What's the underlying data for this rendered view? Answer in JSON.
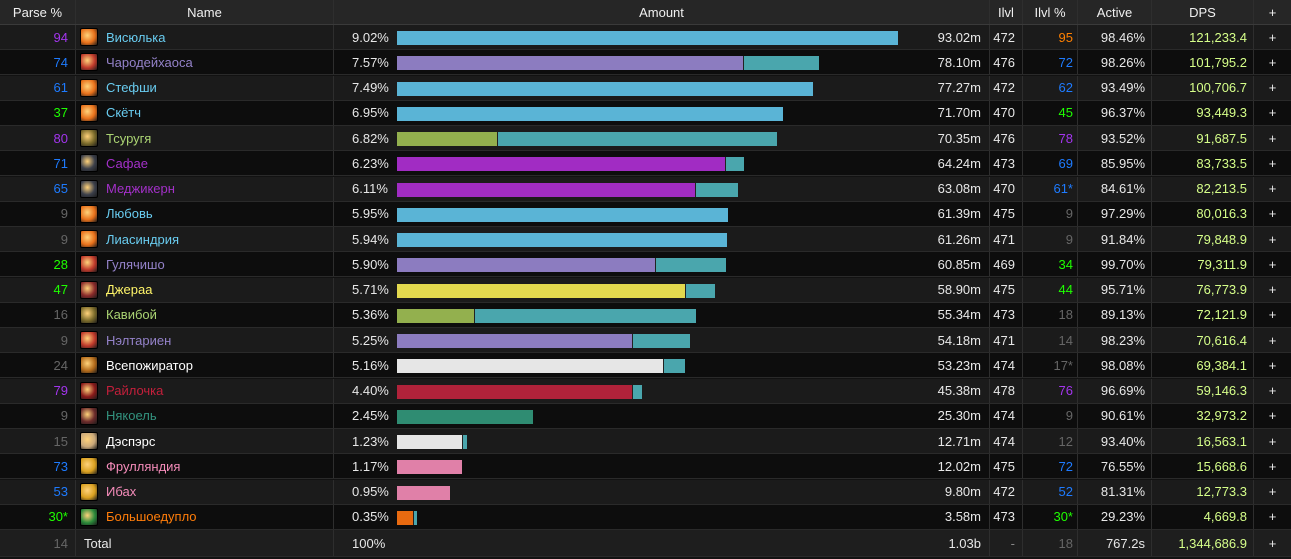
{
  "colors": {
    "legendary": "#ff8000",
    "epic": "#a335ee",
    "rare": "#1e7bff",
    "uncommon": "#1eff00",
    "common": "#666666",
    "dps": "#d6ff8a"
  },
  "columns": [
    "Parse %",
    "Name",
    "Amount",
    "Ilvl",
    "Ilvl %",
    "Active",
    "DPS",
    "+"
  ],
  "rows": [
    {
      "parse": "94",
      "parse_color": "#a335ee",
      "name": "Висюлька",
      "name_color": "#69ccf0",
      "icon": "fire-icon",
      "icon_color": "#e8701a",
      "pct": "9.02%",
      "amount": "93.02m",
      "share": 1.0,
      "primary_share": 1.0,
      "primary_color": "#5ab4d6",
      "ilvl": "472",
      "ilvlp": "95",
      "ilvlp_color": "#ff8000",
      "active": "98.46%",
      "dps": "121,233.4",
      "plus": "+"
    },
    {
      "parse": "74",
      "parse_color": "#1e7bff",
      "name": "Чародейхаоса",
      "name_color": "#9482c9",
      "icon": "chaos-bolt-icon",
      "icon_color": "#c0392b",
      "pct": "7.57%",
      "amount": "78.10m",
      "share": 0.84,
      "primary_share": 0.69,
      "primary_color": "#8c7cc0",
      "ilvl": "476",
      "ilvlp": "72",
      "ilvlp_color": "#1e7bff",
      "active": "98.26%",
      "dps": "101,795.2",
      "plus": "+"
    },
    {
      "parse": "61",
      "parse_color": "#1e7bff",
      "name": "Стефши",
      "name_color": "#69ccf0",
      "icon": "fire-icon",
      "icon_color": "#e8701a",
      "pct": "7.49%",
      "amount": "77.27m",
      "share": 0.83,
      "primary_share": 0.83,
      "primary_color": "#5ab4d6",
      "ilvl": "472",
      "ilvlp": "62",
      "ilvlp_color": "#1e7bff",
      "active": "93.49%",
      "dps": "100,706.7",
      "plus": "+"
    },
    {
      "parse": "37",
      "parse_color": "#1eff00",
      "name": "Скётч",
      "name_color": "#69ccf0",
      "icon": "fire-icon",
      "icon_color": "#e8701a",
      "pct": "6.95%",
      "amount": "71.70m",
      "share": 0.77,
      "primary_share": 0.77,
      "primary_color": "#5ab4d6",
      "ilvl": "470",
      "ilvlp": "45",
      "ilvlp_color": "#1eff00",
      "active": "96.37%",
      "dps": "93,449.3",
      "plus": "+"
    },
    {
      "parse": "80",
      "parse_color": "#a335ee",
      "name": "Тсуругя",
      "name_color": "#abd473",
      "icon": "bow-icon",
      "icon_color": "#7a6a2a",
      "pct": "6.82%",
      "amount": "70.35m",
      "share": 0.756,
      "primary_share": 0.2,
      "primary_color": "#93b04e",
      "ilvl": "476",
      "ilvlp": "78",
      "ilvlp_color": "#a335ee",
      "active": "93.52%",
      "dps": "91,687.5",
      "plus": "+"
    },
    {
      "parse": "71",
      "parse_color": "#1e7bff",
      "name": "Сафае",
      "name_color": "#a330c9",
      "icon": "demon-icon",
      "icon_color": "#3b3f4a",
      "pct": "6.23%",
      "amount": "64.24m",
      "share": 0.69,
      "primary_share": 0.655,
      "primary_color": "#a12cc3",
      "ilvl": "473",
      "ilvlp": "69",
      "ilvlp_color": "#1e7bff",
      "active": "85.95%",
      "dps": "83,733.5",
      "plus": "+"
    },
    {
      "parse": "65",
      "parse_color": "#1e7bff",
      "name": "Меджикерн",
      "name_color": "#a330c9",
      "icon": "demon-icon",
      "icon_color": "#3b3f4a",
      "pct": "6.11%",
      "amount": "63.08m",
      "share": 0.678,
      "primary_share": 0.595,
      "primary_color": "#a12cc3",
      "ilvl": "470",
      "ilvlp": "61*",
      "ilvlp_color": "#1e7bff",
      "active": "84.61%",
      "dps": "82,213.5",
      "plus": "+"
    },
    {
      "parse": "9",
      "parse_color": "#666666",
      "name": "Любовь",
      "name_color": "#69ccf0",
      "icon": "fire-icon",
      "icon_color": "#e8701a",
      "pct": "5.95%",
      "amount": "61.39m",
      "share": 0.66,
      "primary_share": 0.66,
      "primary_color": "#5ab4d6",
      "ilvl": "475",
      "ilvlp": "9",
      "ilvlp_color": "#666666",
      "active": "97.29%",
      "dps": "80,016.3",
      "plus": "+"
    },
    {
      "parse": "9",
      "parse_color": "#666666",
      "name": "Лиасиндрия",
      "name_color": "#69ccf0",
      "icon": "fire-icon",
      "icon_color": "#e8701a",
      "pct": "5.94%",
      "amount": "61.26m",
      "share": 0.658,
      "primary_share": 0.658,
      "primary_color": "#5ab4d6",
      "ilvl": "471",
      "ilvlp": "9",
      "ilvlp_color": "#666666",
      "active": "91.84%",
      "dps": "79,848.9",
      "plus": "+"
    },
    {
      "parse": "28",
      "parse_color": "#1eff00",
      "name": "Гулячишо",
      "name_color": "#9482c9",
      "icon": "chaos-bolt-icon",
      "icon_color": "#c0392b",
      "pct": "5.90%",
      "amount": "60.85m",
      "share": 0.654,
      "primary_share": 0.514,
      "primary_color": "#8c7cc0",
      "ilvl": "469",
      "ilvlp": "34",
      "ilvlp_color": "#1eff00",
      "active": "99.70%",
      "dps": "79,311.9",
      "plus": "+"
    },
    {
      "parse": "47",
      "parse_color": "#1eff00",
      "name": "Джераа",
      "name_color": "#fff569",
      "icon": "rogue-icon",
      "icon_color": "#8a2a2a",
      "pct": "5.71%",
      "amount": "58.90m",
      "share": 0.633,
      "primary_share": 0.575,
      "primary_color": "#e3d94e",
      "ilvl": "475",
      "ilvlp": "44",
      "ilvlp_color": "#1eff00",
      "active": "95.71%",
      "dps": "76,773.9",
      "plus": "+"
    },
    {
      "parse": "16",
      "parse_color": "#666666",
      "name": "Кавибой",
      "name_color": "#abd473",
      "icon": "bow-icon",
      "icon_color": "#7a6a2a",
      "pct": "5.36%",
      "amount": "55.34m",
      "share": 0.595,
      "primary_share": 0.154,
      "primary_color": "#93b04e",
      "ilvl": "473",
      "ilvlp": "18",
      "ilvlp_color": "#666666",
      "active": "89.13%",
      "dps": "72,121.9",
      "plus": "+"
    },
    {
      "parse": "9",
      "parse_color": "#666666",
      "name": "Нэлтариен",
      "name_color": "#9482c9",
      "icon": "chaos-bolt-icon",
      "icon_color": "#c0392b",
      "pct": "5.25%",
      "amount": "54.18m",
      "share": 0.582,
      "primary_share": 0.47,
      "primary_color": "#8c7cc0",
      "ilvl": "471",
      "ilvlp": "14",
      "ilvlp_color": "#666666",
      "active": "98.23%",
      "dps": "70,616.4",
      "plus": "+"
    },
    {
      "parse": "24",
      "parse_color": "#666666",
      "name": "Всепожиратор",
      "name_color": "#ffffff",
      "icon": "void-icon",
      "icon_color": "#b36a1a",
      "pct": "5.16%",
      "amount": "53.23m",
      "share": 0.572,
      "primary_share": 0.53,
      "primary_color": "#e6e6e6",
      "ilvl": "474",
      "ilvlp": "17*",
      "ilvlp_color": "#666666",
      "active": "98.08%",
      "dps": "69,384.1",
      "plus": "+"
    },
    {
      "parse": "79",
      "parse_color": "#a335ee",
      "name": "Райлочка",
      "name_color": "#c41f3b",
      "icon": "blood-icon",
      "icon_color": "#8a1a1a",
      "pct": "4.40%",
      "amount": "45.38m",
      "share": 0.488,
      "primary_share": 0.469,
      "primary_color": "#b0223a",
      "ilvl": "478",
      "ilvlp": "76",
      "ilvlp_color": "#a335ee",
      "active": "96.69%",
      "dps": "59,146.3",
      "plus": "+"
    },
    {
      "parse": "9",
      "parse_color": "#666666",
      "name": "Някоель",
      "name_color": "#33937f",
      "icon": "dragon-icon",
      "icon_color": "#6a2a2a",
      "pct": "2.45%",
      "amount": "25.30m",
      "share": 0.272,
      "primary_share": 0.272,
      "primary_color": "#2f8c72",
      "ilvl": "474",
      "ilvlp": "9",
      "ilvlp_color": "#666666",
      "active": "90.61%",
      "dps": "32,973.2",
      "plus": "+"
    },
    {
      "parse": "15",
      "parse_color": "#666666",
      "name": "Дэспэрс",
      "name_color": "#ffffff",
      "icon": "holy-icon",
      "icon_color": "#c9a87a",
      "pct": "1.23%",
      "amount": "12.71m",
      "share": 0.137,
      "primary_share": 0.13,
      "primary_color": "#e6e6e6",
      "ilvl": "474",
      "ilvlp": "12",
      "ilvlp_color": "#666666",
      "active": "93.40%",
      "dps": "16,563.1",
      "plus": "+"
    },
    {
      "parse": "73",
      "parse_color": "#1e7bff",
      "name": "Фрулляндия",
      "name_color": "#f58cba",
      "icon": "light-icon",
      "icon_color": "#d9a020",
      "pct": "1.17%",
      "amount": "12.02m",
      "share": 0.129,
      "primary_share": 0.129,
      "primary_color": "#e080a8",
      "ilvl": "475",
      "ilvlp": "72",
      "ilvlp_color": "#1e7bff",
      "active": "76.55%",
      "dps": "15,668.6",
      "plus": "+"
    },
    {
      "parse": "53",
      "parse_color": "#1e7bff",
      "name": "Ибах",
      "name_color": "#f58cba",
      "icon": "light-icon",
      "icon_color": "#d9a020",
      "pct": "0.95%",
      "amount": "9.80m",
      "share": 0.105,
      "primary_share": 0.105,
      "primary_color": "#e080a8",
      "ilvl": "472",
      "ilvlp": "52",
      "ilvlp_color": "#1e7bff",
      "active": "81.31%",
      "dps": "12,773.3",
      "plus": "+"
    },
    {
      "parse": "30*",
      "parse_color": "#1eff00",
      "name": "Большоедупло",
      "name_color": "#ff7d0a",
      "icon": "nature-icon",
      "icon_color": "#2a8a3a",
      "pct": "0.35%",
      "amount": "3.58m",
      "share": 0.038,
      "primary_share": 0.031,
      "primary_color": "#e86a10",
      "ilvl": "473",
      "ilvlp": "30*",
      "ilvlp_color": "#1eff00",
      "active": "29.23%",
      "dps": "4,669.8",
      "plus": "+"
    }
  ],
  "total": {
    "parse": "14",
    "name": "Total",
    "pct": "100%",
    "amount": "1.03b",
    "ilvl": "-",
    "ilvlp": "18",
    "active": "767.2s",
    "dps": "1,344,686.9",
    "plus": "+"
  }
}
